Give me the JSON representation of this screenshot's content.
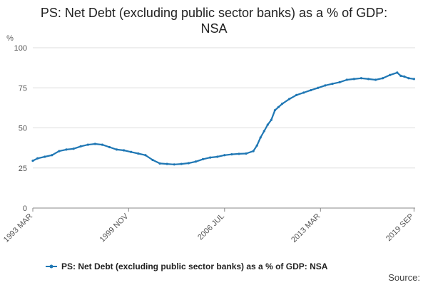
{
  "chart_data": {
    "type": "line",
    "title_line1": "PS: Net Debt (excluding public sector banks) as a % of GDP:",
    "title_line2": "NSA",
    "ylabel": "%",
    "ylim": [
      0,
      100
    ],
    "yticks": [
      0,
      25,
      50,
      75,
      100
    ],
    "xlim": [
      1993.17,
      2019.75
    ],
    "xticks": [
      {
        "label": "1993 MAR",
        "value": 1993.17
      },
      {
        "label": "1999 NOV",
        "value": 1999.83
      },
      {
        "label": "2006 JUL",
        "value": 2006.5
      },
      {
        "label": "2013 MAR",
        "value": 2013.17
      },
      {
        "label": "2019 SEP",
        "value": 2019.67
      }
    ],
    "grid": true,
    "legend_position": "bottom",
    "series": [
      {
        "name": "PS: Net Debt (excluding public sector banks) as a % of GDP: NSA",
        "color": "#1f77b4",
        "points": [
          [
            1993.17,
            29.5
          ],
          [
            1993.5,
            31
          ],
          [
            1994.0,
            32
          ],
          [
            1994.5,
            33
          ],
          [
            1995.0,
            35.5
          ],
          [
            1995.5,
            36.5
          ],
          [
            1996.0,
            37
          ],
          [
            1996.5,
            38.5
          ],
          [
            1997.0,
            39.5
          ],
          [
            1997.5,
            40
          ],
          [
            1998.0,
            39.5
          ],
          [
            1998.5,
            38
          ],
          [
            1999.0,
            36.5
          ],
          [
            1999.5,
            36
          ],
          [
            2000.0,
            35
          ],
          [
            2000.5,
            34
          ],
          [
            2001.0,
            33
          ],
          [
            2001.5,
            30
          ],
          [
            2002.0,
            27.8
          ],
          [
            2002.5,
            27.5
          ],
          [
            2003.0,
            27.2
          ],
          [
            2003.5,
            27.5
          ],
          [
            2004.0,
            28
          ],
          [
            2004.5,
            29
          ],
          [
            2005.0,
            30.5
          ],
          [
            2005.5,
            31.5
          ],
          [
            2006.0,
            32
          ],
          [
            2006.5,
            33
          ],
          [
            2007.0,
            33.5
          ],
          [
            2007.5,
            33.8
          ],
          [
            2008.0,
            34
          ],
          [
            2008.5,
            35.5
          ],
          [
            2008.75,
            39
          ],
          [
            2009.0,
            44
          ],
          [
            2009.25,
            48
          ],
          [
            2009.5,
            52
          ],
          [
            2009.75,
            55
          ],
          [
            2010.0,
            61
          ],
          [
            2010.25,
            63
          ],
          [
            2010.5,
            65
          ],
          [
            2011.0,
            68
          ],
          [
            2011.5,
            70.5
          ],
          [
            2012.0,
            72
          ],
          [
            2012.5,
            73.5
          ],
          [
            2013.0,
            75
          ],
          [
            2013.5,
            76.5
          ],
          [
            2014.0,
            77.5
          ],
          [
            2014.5,
            78.5
          ],
          [
            2015.0,
            80
          ],
          [
            2015.5,
            80.5
          ],
          [
            2016.0,
            81
          ],
          [
            2016.5,
            80.5
          ],
          [
            2017.0,
            80
          ],
          [
            2017.5,
            81
          ],
          [
            2018.0,
            83
          ],
          [
            2018.5,
            84.5
          ],
          [
            2018.75,
            82.5
          ],
          [
            2019.0,
            82
          ],
          [
            2019.3,
            81
          ],
          [
            2019.67,
            80.5
          ]
        ]
      }
    ]
  },
  "source_label": "Source:"
}
